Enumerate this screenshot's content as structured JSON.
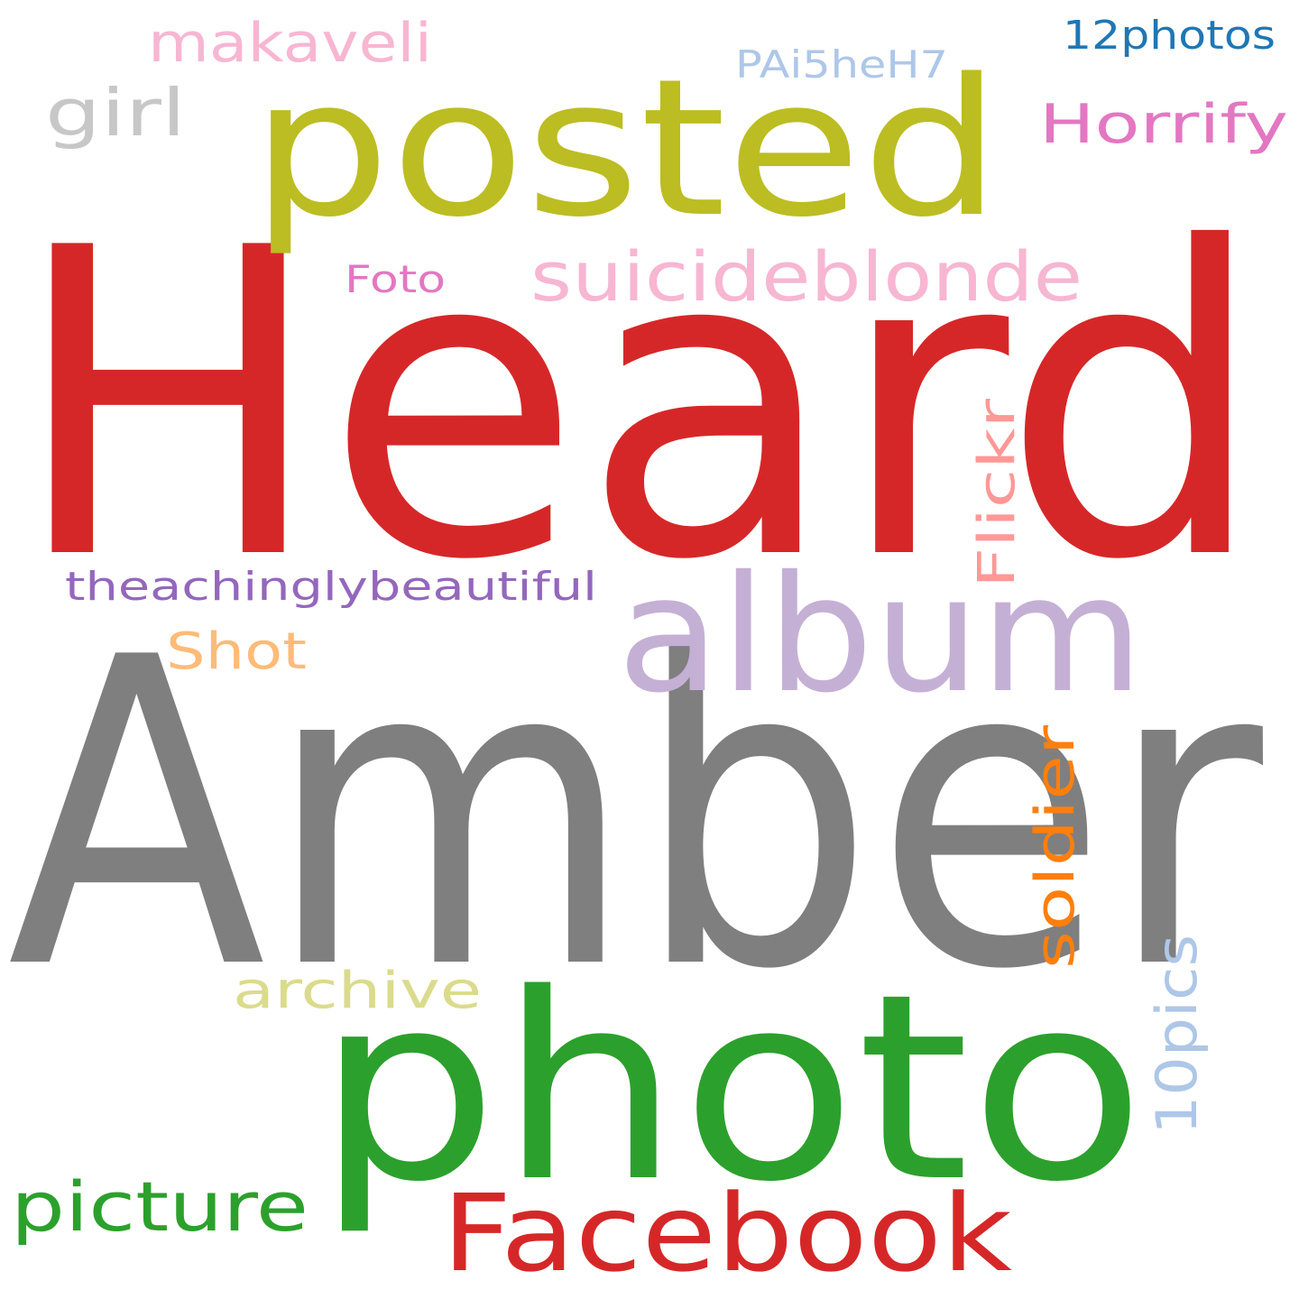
{
  "words": [
    {
      "text": "Heard",
      "color": "#d62728"
    },
    {
      "text": "Amber",
      "color": "#7f7f7f"
    },
    {
      "text": "photo",
      "color": "#2ca02c"
    },
    {
      "text": "posted",
      "color": "#bcbd22"
    },
    {
      "text": "album",
      "color": "#c5b0d5"
    },
    {
      "text": "Facebook",
      "color": "#d62728"
    },
    {
      "text": "suicideblonde",
      "color": "#f7b6d2"
    },
    {
      "text": "picture",
      "color": "#2ca02c"
    },
    {
      "text": "makaveli",
      "color": "#f7b6d2"
    },
    {
      "text": "Horrify",
      "color": "#e377c2"
    },
    {
      "text": "girl",
      "color": "#c7c7c7"
    },
    {
      "text": "archive",
      "color": "#dbdb8d"
    },
    {
      "text": "soldier",
      "color": "#ff7f0e"
    },
    {
      "text": "10pics",
      "color": "#aec7e8"
    },
    {
      "text": "Shot",
      "color": "#ffbb78"
    },
    {
      "text": "Flickr",
      "color": "#ff9896"
    },
    {
      "text": "theachinglybeautiful",
      "color": "#9467bd"
    },
    {
      "text": "PAi5heH7",
      "color": "#aec7e8"
    },
    {
      "text": "12photos",
      "color": "#1f77b4"
    },
    {
      "text": "Foto",
      "color": "#e377c2"
    }
  ]
}
